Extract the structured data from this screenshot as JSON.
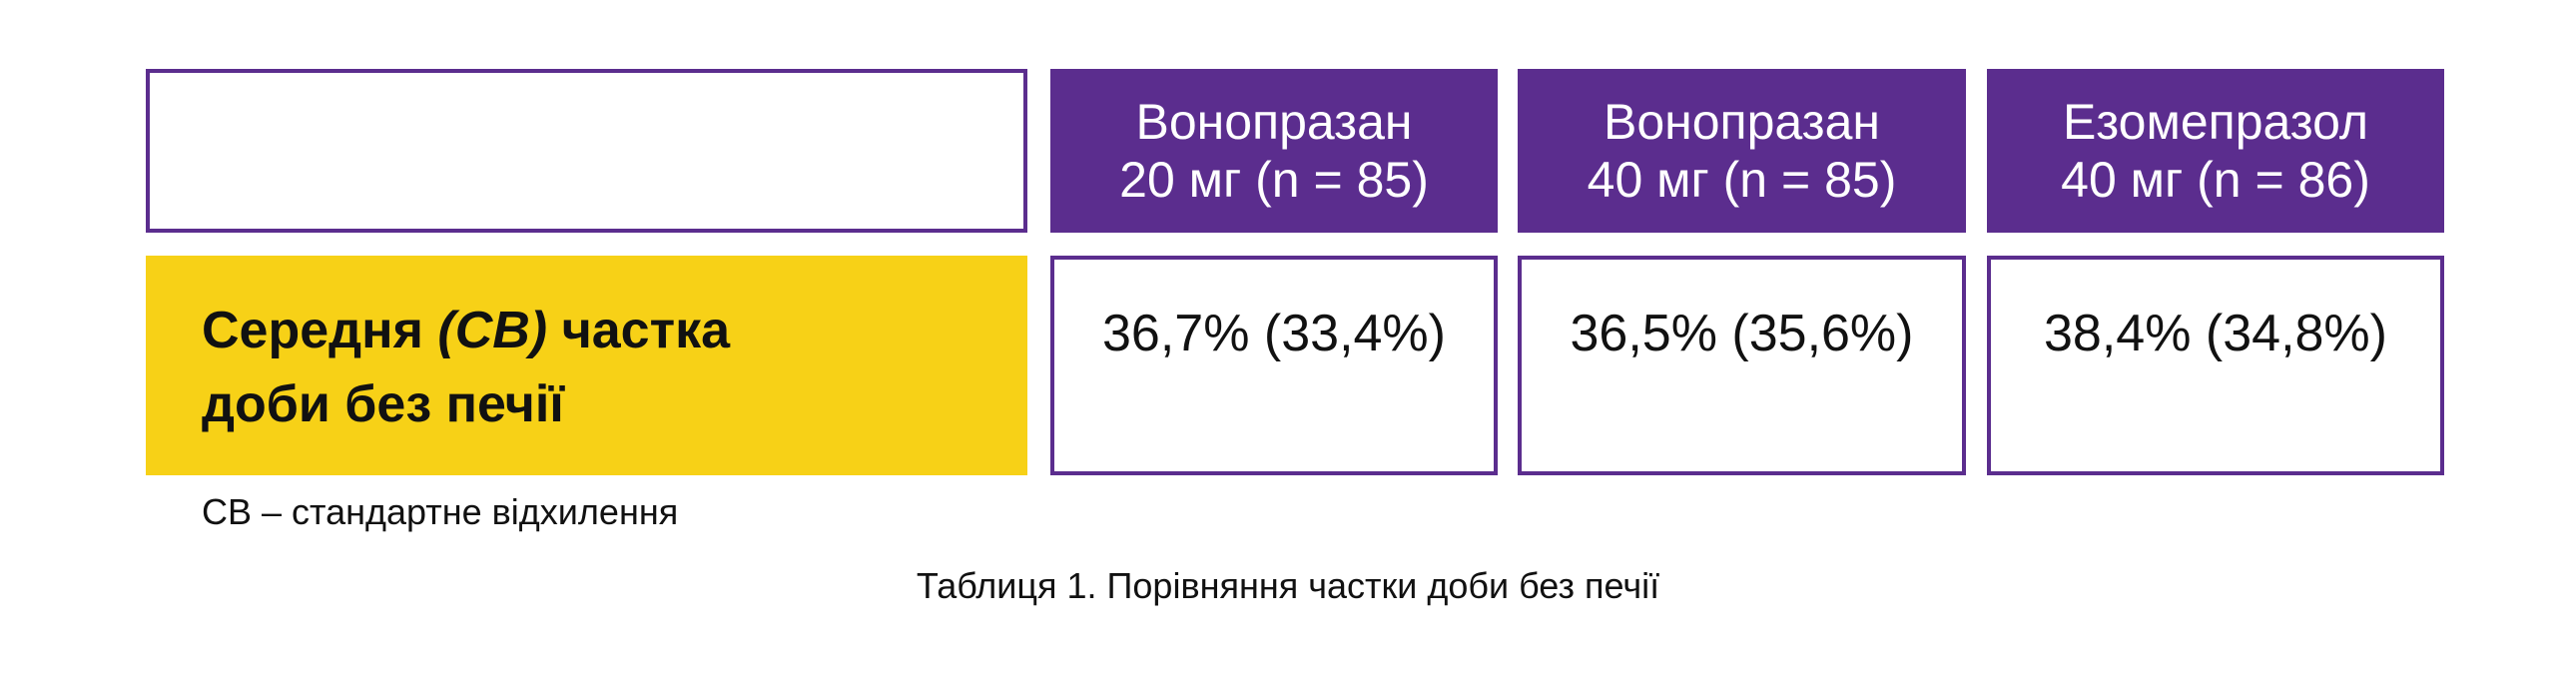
{
  "table": {
    "columns": [
      {
        "lines": [
          "Вонопразан",
          "20 мг (n = 85)"
        ]
      },
      {
        "lines": [
          "Вонопразан",
          "40 мг (n = 85)"
        ]
      },
      {
        "lines": [
          "Езомепразол",
          "40 мг (n = 86)"
        ]
      }
    ],
    "row_label": {
      "line1": [
        "Середня ",
        "(СВ)",
        " частка"
      ],
      "line2": "доби без печії"
    },
    "values": [
      "36,7% (33,4%)",
      "36,5% (35,6%)",
      "38,4% (34,8%)"
    ]
  },
  "footnote": "СВ – стандартне відхилення",
  "caption": "Таблиця 1. Порівняння частки доби без печії"
}
